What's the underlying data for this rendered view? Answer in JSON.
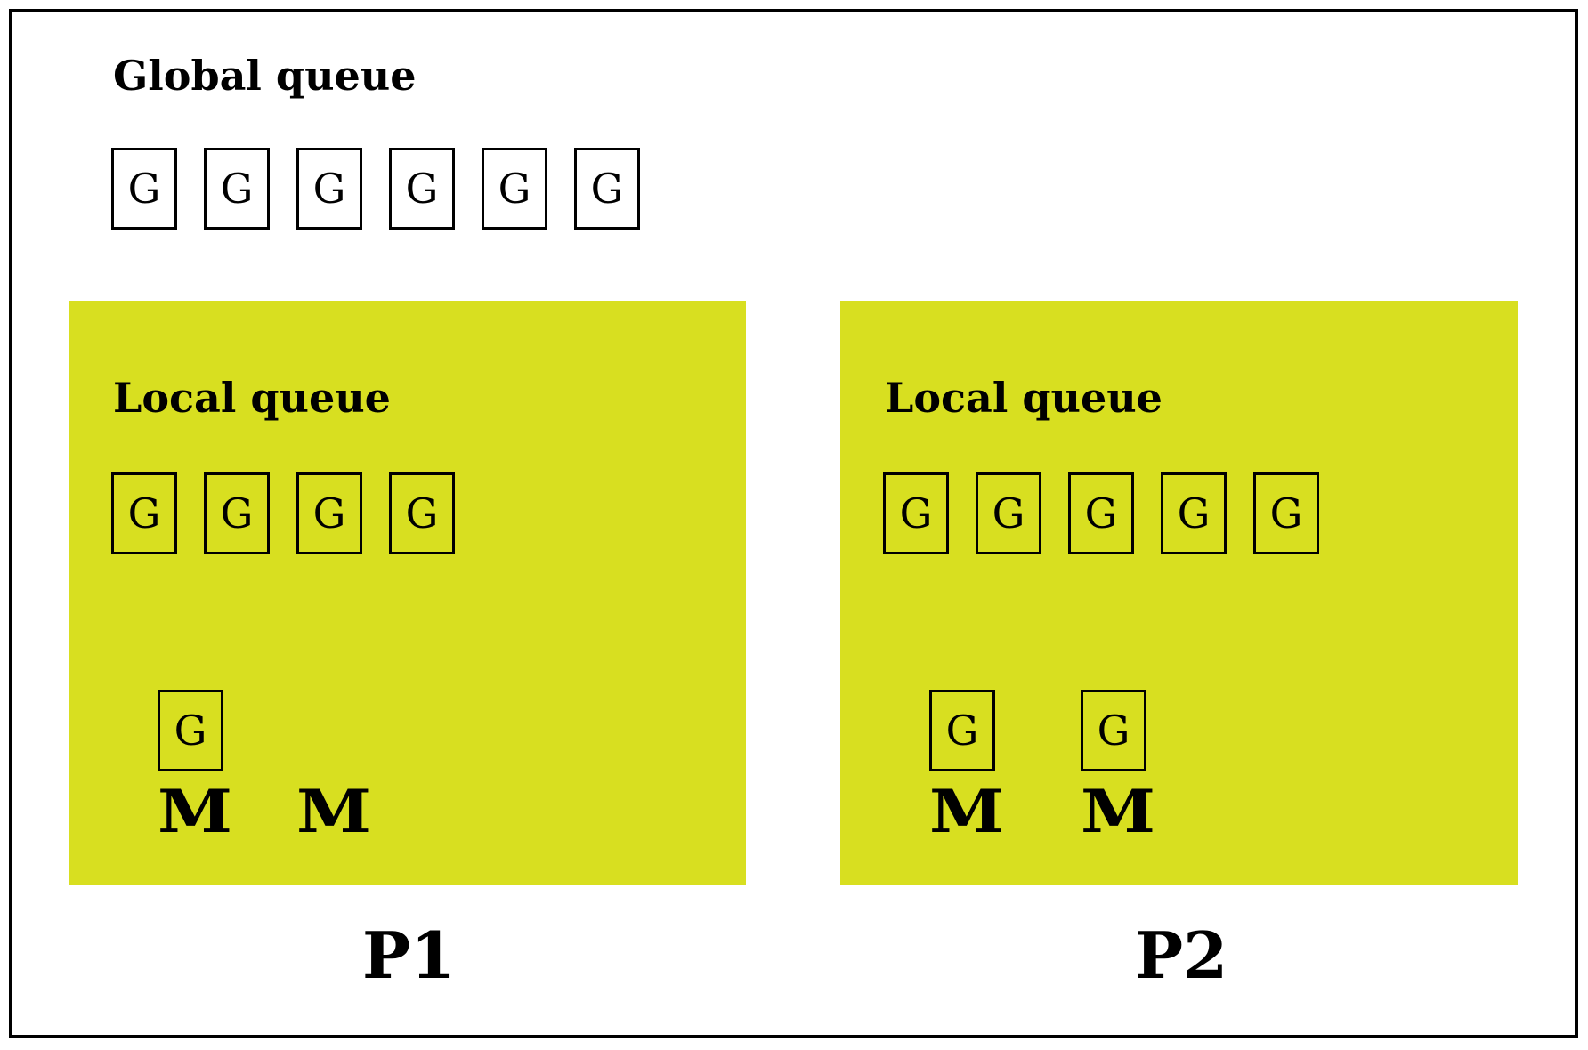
{
  "global_queue": {
    "title": "Global queue",
    "items": [
      "G",
      "G",
      "G",
      "G",
      "G",
      "G"
    ]
  },
  "processors": [
    {
      "label": "P1",
      "local_queue_title": "Local queue",
      "local_items": [
        "G",
        "G",
        "G",
        "G"
      ],
      "machines": [
        {
          "label": "M",
          "running": "G"
        },
        {
          "label": "M",
          "running": ""
        }
      ]
    },
    {
      "label": "P2",
      "local_queue_title": "Local queue",
      "local_items": [
        "G",
        "G",
        "G",
        "G",
        "G"
      ],
      "machines": [
        {
          "label": "M",
          "running": "G"
        },
        {
          "label": "M",
          "running": "G"
        }
      ]
    }
  ],
  "colors": {
    "processor_fill": "#d8df20",
    "border": "#000000",
    "background": "#ffffff"
  }
}
